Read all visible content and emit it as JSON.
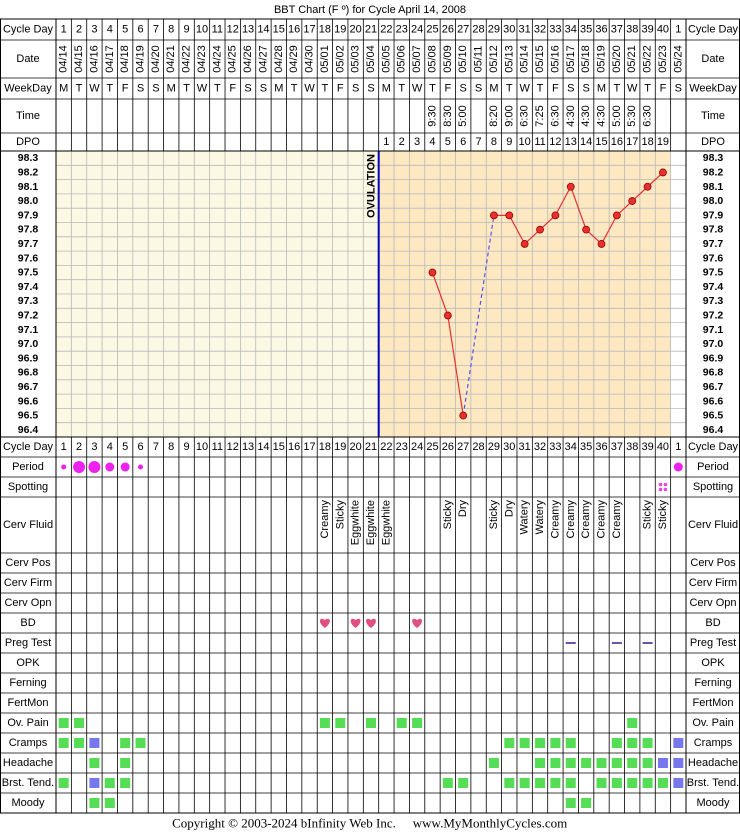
{
  "chart_data": {
    "type": "bbt",
    "title": "BBT Chart (F º) for Cycle April 14, 2008",
    "header_labels": {
      "cycle_day": "Cycle Day",
      "date": "Date",
      "weekday": "WeekDay",
      "time": "Time",
      "dpo": "DPO"
    },
    "cycle_days": [
      1,
      2,
      3,
      4,
      5,
      6,
      7,
      8,
      9,
      10,
      11,
      12,
      13,
      14,
      15,
      16,
      17,
      18,
      19,
      20,
      21,
      22,
      23,
      24,
      25,
      26,
      27,
      28,
      29,
      30,
      31,
      32,
      33,
      34,
      35,
      36,
      37,
      38,
      39,
      40,
      1
    ],
    "dates": [
      "04/14",
      "04/15",
      "04/16",
      "04/17",
      "04/18",
      "04/19",
      "04/20",
      "04/21",
      "04/22",
      "04/23",
      "04/24",
      "04/25",
      "04/26",
      "04/27",
      "04/28",
      "04/29",
      "04/30",
      "05/01",
      "05/02",
      "05/03",
      "05/04",
      "05/05",
      "05/06",
      "05/07",
      "05/08",
      "05/09",
      "05/10",
      "05/11",
      "05/12",
      "05/13",
      "05/14",
      "05/15",
      "05/16",
      "05/17",
      "05/18",
      "05/19",
      "05/20",
      "05/21",
      "05/22",
      "05/23",
      "05/24"
    ],
    "weekdays": [
      "M",
      "T",
      "W",
      "T",
      "F",
      "S",
      "S",
      "M",
      "T",
      "W",
      "T",
      "F",
      "S",
      "S",
      "M",
      "T",
      "W",
      "T",
      "F",
      "S",
      "S",
      "M",
      "T",
      "W",
      "T",
      "F",
      "S",
      "S",
      "M",
      "T",
      "W",
      "T",
      "F",
      "S",
      "S",
      "M",
      "T",
      "W",
      "T",
      "F",
      "S"
    ],
    "times": [
      null,
      null,
      null,
      null,
      null,
      null,
      null,
      null,
      null,
      null,
      null,
      null,
      null,
      null,
      null,
      null,
      null,
      null,
      null,
      null,
      null,
      null,
      null,
      null,
      "9:30",
      "8:30",
      "5:00",
      null,
      "8:20",
      "9:00",
      "6:30",
      "7:25",
      "6:30",
      "4:30",
      "4:30",
      "4:30",
      "5:00",
      "5:30",
      "6:30",
      null,
      null
    ],
    "dpo": [
      null,
      null,
      null,
      null,
      null,
      null,
      null,
      null,
      null,
      null,
      null,
      null,
      null,
      null,
      null,
      null,
      null,
      null,
      null,
      null,
      null,
      1,
      2,
      3,
      4,
      5,
      6,
      7,
      8,
      9,
      10,
      11,
      12,
      13,
      14,
      15,
      16,
      17,
      18,
      19,
      null
    ],
    "temperatures": [
      null,
      null,
      null,
      null,
      null,
      null,
      null,
      null,
      null,
      null,
      null,
      null,
      null,
      null,
      null,
      null,
      null,
      null,
      null,
      null,
      null,
      null,
      null,
      null,
      97.5,
      97.2,
      96.5,
      null,
      97.9,
      97.9,
      97.7,
      97.8,
      97.9,
      98.1,
      97.8,
      97.7,
      97.9,
      98.0,
      98.1,
      98.2,
      null
    ],
    "ylim": [
      96.4,
      98.3
    ],
    "yticks": [
      98.3,
      98.2,
      98.1,
      {
        "value": 98,
        "label": "98.0"
      },
      97.9,
      97.8,
      97.7,
      97.6,
      97.5,
      97.4,
      97.3,
      97.2,
      97.1,
      {
        "value": 97,
        "label": "97.0"
      },
      96.9,
      96.8,
      96.7,
      96.6,
      96.5,
      96.4
    ],
    "color": "#e83030",
    "gap_color": "#5555ee",
    "ovulation_day": 21,
    "ovulation_label": "OVULATION",
    "ovulation_color": "#0000bb",
    "pre_ovulation_shade": "#fbf8e4",
    "post_ovulation_shade": "#fde8c2",
    "level_colors": [
      "#55dd55",
      "#7777ee"
    ],
    "rows": [
      {
        "label": "Period",
        "kind": "period",
        "color": "#ee22ee",
        "values": [
          1,
          3,
          3,
          2,
          2,
          1,
          null,
          null,
          null,
          null,
          null,
          null,
          null,
          null,
          null,
          null,
          null,
          null,
          null,
          null,
          null,
          null,
          null,
          null,
          null,
          null,
          null,
          null,
          null,
          null,
          null,
          null,
          null,
          null,
          null,
          null,
          null,
          null,
          null,
          null,
          2
        ]
      },
      {
        "label": "Spotting",
        "kind": "spotting",
        "color": "#ee44dd",
        "values": [
          null,
          null,
          null,
          null,
          null,
          null,
          null,
          null,
          null,
          null,
          null,
          null,
          null,
          null,
          null,
          null,
          null,
          null,
          null,
          null,
          null,
          null,
          null,
          null,
          null,
          null,
          null,
          null,
          null,
          null,
          null,
          null,
          null,
          null,
          null,
          null,
          null,
          null,
          null,
          true,
          null
        ]
      },
      {
        "label": "Cerv Fluid",
        "kind": "text",
        "values": [
          null,
          null,
          null,
          null,
          null,
          null,
          null,
          null,
          null,
          null,
          null,
          null,
          null,
          null,
          null,
          null,
          null,
          "Creamy",
          "Sticky",
          "Eggwhite",
          "Eggwhite",
          "Eggwhite",
          null,
          null,
          null,
          "Sticky",
          "Dry",
          null,
          "Sticky",
          "Dry",
          "Watery",
          "Watery",
          "Creamy",
          "Creamy",
          "Creamy",
          "Creamy",
          "Creamy",
          null,
          "Sticky",
          "Sticky",
          null
        ]
      },
      {
        "label": "Cerv Pos",
        "kind": "empty"
      },
      {
        "label": "Cerv Firm",
        "kind": "empty"
      },
      {
        "label": "Cerv Opn",
        "kind": "empty"
      },
      {
        "label": "BD",
        "kind": "heart",
        "color": "#e0507f",
        "values": [
          null,
          null,
          null,
          null,
          null,
          null,
          null,
          null,
          null,
          null,
          null,
          null,
          null,
          null,
          null,
          null,
          null,
          true,
          null,
          true,
          true,
          null,
          null,
          true,
          null,
          null,
          null,
          null,
          null,
          null,
          null,
          null,
          null,
          null,
          null,
          null,
          null,
          null,
          null,
          null,
          null
        ]
      },
      {
        "label": "Preg Test",
        "kind": "dash",
        "color": "#7050a0",
        "values": [
          null,
          null,
          null,
          null,
          null,
          null,
          null,
          null,
          null,
          null,
          null,
          null,
          null,
          null,
          null,
          null,
          null,
          null,
          null,
          null,
          null,
          null,
          null,
          null,
          null,
          null,
          null,
          null,
          null,
          null,
          null,
          null,
          null,
          true,
          null,
          null,
          true,
          null,
          true,
          null,
          null
        ]
      },
      {
        "label": "OPK",
        "kind": "empty"
      },
      {
        "label": "Ferning",
        "kind": "empty"
      },
      {
        "label": "FertMon",
        "kind": "empty"
      },
      {
        "label": "Ov. Pain",
        "kind": "level",
        "values": [
          1,
          1,
          null,
          null,
          null,
          null,
          null,
          null,
          null,
          null,
          null,
          null,
          null,
          null,
          null,
          null,
          null,
          1,
          1,
          null,
          1,
          null,
          1,
          1,
          null,
          null,
          null,
          null,
          null,
          null,
          null,
          null,
          null,
          null,
          null,
          null,
          null,
          1,
          null,
          null,
          null
        ]
      },
      {
        "label": "Cramps",
        "kind": "level",
        "values": [
          1,
          1,
          2,
          null,
          1,
          1,
          null,
          null,
          null,
          null,
          null,
          null,
          null,
          null,
          null,
          null,
          null,
          null,
          null,
          null,
          null,
          null,
          null,
          null,
          null,
          null,
          null,
          null,
          null,
          1,
          1,
          1,
          1,
          1,
          null,
          null,
          1,
          1,
          1,
          null,
          2
        ]
      },
      {
        "label": "Headache",
        "kind": "level",
        "values": [
          null,
          null,
          1,
          null,
          1,
          null,
          null,
          null,
          null,
          null,
          null,
          null,
          null,
          null,
          null,
          null,
          null,
          null,
          null,
          null,
          null,
          null,
          null,
          null,
          null,
          null,
          null,
          null,
          1,
          null,
          null,
          1,
          1,
          1,
          1,
          1,
          1,
          1,
          1,
          2,
          2
        ]
      },
      {
        "label": "Brst. Tend.",
        "kind": "level",
        "values": [
          1,
          null,
          2,
          1,
          1,
          null,
          null,
          null,
          null,
          null,
          null,
          null,
          null,
          null,
          null,
          null,
          null,
          null,
          null,
          null,
          null,
          null,
          null,
          null,
          null,
          1,
          1,
          null,
          null,
          1,
          1,
          1,
          1,
          1,
          null,
          1,
          1,
          1,
          1,
          1,
          2
        ]
      },
      {
        "label": "Moody",
        "kind": "level",
        "values": [
          null,
          null,
          1,
          1,
          null,
          null,
          null,
          null,
          null,
          null,
          null,
          null,
          null,
          null,
          null,
          null,
          null,
          null,
          null,
          null,
          null,
          null,
          null,
          null,
          null,
          null,
          null,
          null,
          null,
          null,
          null,
          null,
          null,
          1,
          1,
          null,
          null,
          null,
          null,
          null,
          null
        ]
      }
    ],
    "copyright": "Copyright © 2003-2024 bInfinity Web Inc.",
    "website": "www.MyMonthlyCycles.com"
  }
}
